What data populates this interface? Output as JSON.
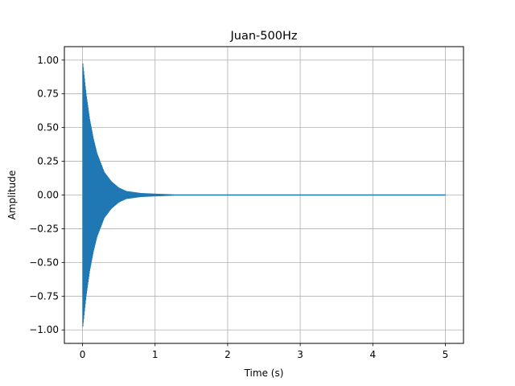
{
  "chart_data": {
    "type": "line",
    "title": "Juan-500Hz",
    "xlabel": "Time (s)",
    "ylabel": "Amplitude",
    "xlim": [
      -0.25,
      5.25
    ],
    "ylim": [
      -1.1,
      1.1
    ],
    "x_ticks": [
      0,
      1,
      2,
      3,
      4,
      5
    ],
    "x_tick_labels": [
      "0",
      "1",
      "2",
      "3",
      "4",
      "5"
    ],
    "y_ticks": [
      -1.0,
      -0.75,
      -0.5,
      -0.25,
      0.0,
      0.25,
      0.5,
      0.75,
      1.0
    ],
    "y_tick_labels": [
      "−1.00",
      "−0.75",
      "−0.50",
      "−0.25",
      "0.00",
      "0.25",
      "0.50",
      "0.75",
      "1.00"
    ],
    "grid": true,
    "series": [
      {
        "color": "#1f77b4",
        "frequency_hz": 500,
        "x_start": 0,
        "x_end": 5,
        "envelope": {
          "x": [
            0,
            0.05,
            0.1,
            0.15,
            0.2,
            0.3,
            0.4,
            0.5,
            0.6,
            0.8,
            1.0,
            1.25,
            1.5,
            5.0
          ],
          "y": [
            1.0,
            0.75,
            0.56,
            0.42,
            0.31,
            0.17,
            0.1,
            0.055,
            0.03,
            0.015,
            0.01,
            0.005,
            0.0,
            0.0
          ]
        }
      }
    ]
  }
}
